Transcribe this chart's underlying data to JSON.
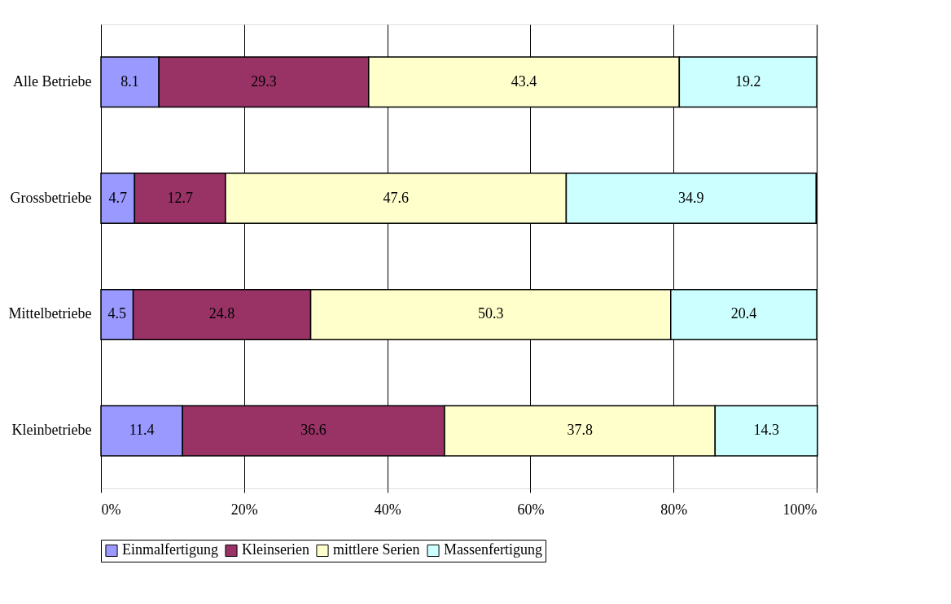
{
  "chart_data": {
    "type": "bar",
    "orientation": "horizontal",
    "stacked": true,
    "categories": [
      "Alle Betriebe",
      "Grossbetriebe",
      "Mittelbetriebe",
      "Kleinbetriebe"
    ],
    "series": [
      {
        "name": "Einmalfertigung",
        "color": "#9999ff",
        "values": [
          8.1,
          4.7,
          4.5,
          11.4
        ]
      },
      {
        "name": "Kleinserien",
        "color": "#993366",
        "values": [
          29.3,
          12.7,
          24.8,
          36.6
        ]
      },
      {
        "name": "mittlere Serien",
        "color": "#ffffcc",
        "values": [
          43.4,
          47.6,
          50.3,
          37.8
        ]
      },
      {
        "name": "Massenfertigung",
        "color": "#ccffff",
        "values": [
          19.2,
          34.9,
          20.4,
          14.3
        ]
      }
    ],
    "xlim": [
      0,
      100.1
    ],
    "xticks": [
      {
        "value": 0,
        "label": "0%"
      },
      {
        "value": 20,
        "label": "20%"
      },
      {
        "value": 40,
        "label": "40%"
      },
      {
        "value": 60,
        "label": "60%"
      },
      {
        "value": 80,
        "label": "80%"
      },
      {
        "value": 100,
        "label": "100%"
      }
    ],
    "grid": "x",
    "legend": "bottom",
    "data_labels": true
  }
}
